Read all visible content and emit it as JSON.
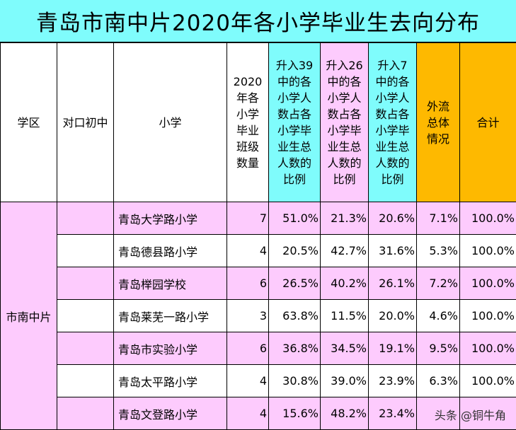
{
  "title": "青岛市南中片2020年各小学毕业生去向分布",
  "headers": {
    "district": "学区",
    "middle_school": "对口初中",
    "school": "小学",
    "classes": [
      "2020",
      "年各",
      "小学",
      "毕业",
      "班级",
      "数量"
    ],
    "pct39": [
      "升入39",
      "中的各",
      "小学人",
      "数占各",
      "小学毕",
      "业生总",
      "人数的",
      "比例"
    ],
    "pct26": [
      "升入26",
      "中的各",
      "小学人",
      "数占各",
      "小学毕",
      "业生总",
      "人数的",
      "比例"
    ],
    "pct7": [
      "升入7",
      "中的各",
      "小学人",
      "数占各",
      "小学毕",
      "业生总",
      "人数的",
      "比例"
    ],
    "outflow": [
      "外流",
      "总体",
      "情况"
    ],
    "total": "合计"
  },
  "district_name": "市南中片",
  "rows": [
    {
      "school": "青岛大学路小学",
      "classes": "7",
      "pct39": "51.0%",
      "pct26": "21.3%",
      "pct7": "20.6%",
      "outflow": "7.1%",
      "total": "100.0%"
    },
    {
      "school": "青岛德县路小学",
      "classes": "4",
      "pct39": "20.5%",
      "pct26": "42.7%",
      "pct7": "31.6%",
      "outflow": "5.3%",
      "total": "100.0%"
    },
    {
      "school": "青岛榉园学校",
      "classes": "6",
      "pct39": "26.5%",
      "pct26": "40.2%",
      "pct7": "26.1%",
      "outflow": "7.2%",
      "total": "100.0%"
    },
    {
      "school": "青岛莱芜一路小学",
      "classes": "3",
      "pct39": "63.8%",
      "pct26": "11.5%",
      "pct7": "20.0%",
      "outflow": "4.6%",
      "total": "100.0%"
    },
    {
      "school": "青岛市实验小学",
      "classes": "6",
      "pct39": "36.8%",
      "pct26": "34.5%",
      "pct7": "19.1%",
      "outflow": "9.5%",
      "total": "100.0%"
    },
    {
      "school": "青岛太平路小学",
      "classes": "4",
      "pct39": "30.8%",
      "pct26": "39.0%",
      "pct7": "23.9%",
      "outflow": "6.3%",
      "total": "100.0%"
    },
    {
      "school": "青岛文登路小学",
      "classes": "4",
      "pct39": "15.6%",
      "pct26": "48.2%",
      "pct7": "23.4%",
      "outflow": "",
      "total": ""
    }
  ],
  "watermark": "头条 @铜牛角"
}
